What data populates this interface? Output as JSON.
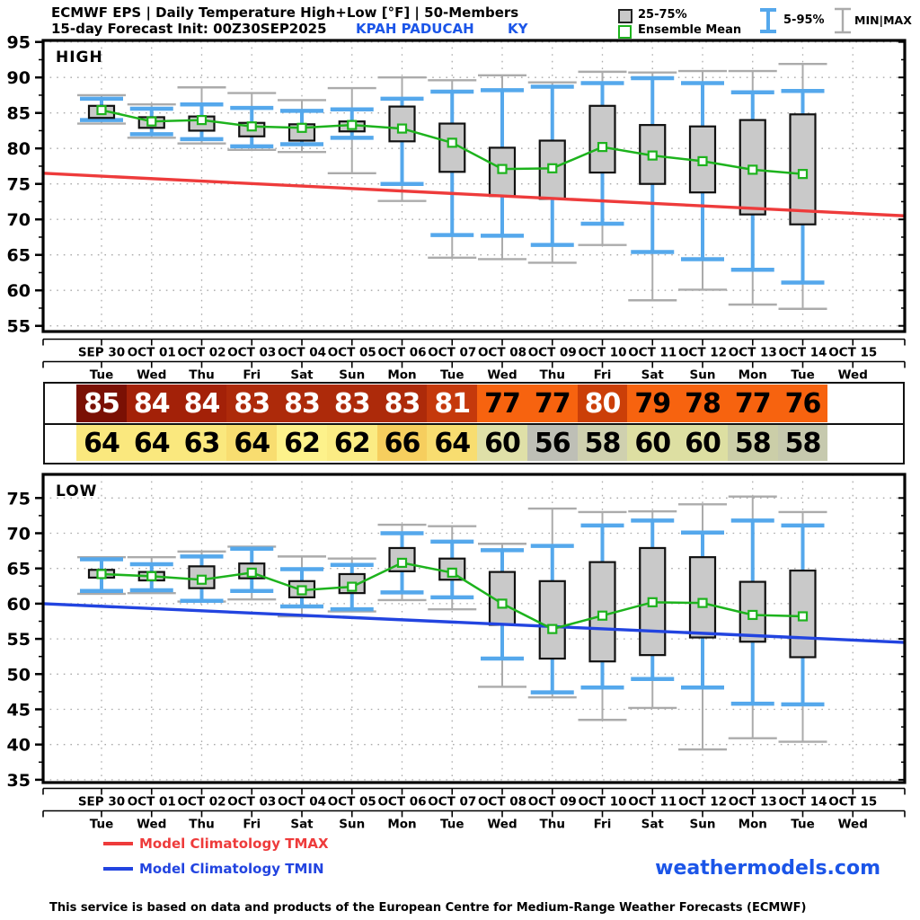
{
  "header": {
    "title_line1": "ECMWF EPS | Daily Temperature High+Low [°F] | 50-Members",
    "title_line2": "15-day Forecast Init: 00Z30SEP2025",
    "station": "KPAH  PADUCAH",
    "state": "KY",
    "legend": {
      "box_label": "25-75%",
      "mean_label": "Ensemble Mean",
      "pct_label": "5-95%",
      "minmax_label": "MIN|MAX"
    }
  },
  "days": [
    {
      "date": "SEP 30",
      "dow": "Tue"
    },
    {
      "date": "OCT 01",
      "dow": "Wed"
    },
    {
      "date": "OCT 02",
      "dow": "Thu"
    },
    {
      "date": "OCT 03",
      "dow": "Fri"
    },
    {
      "date": "OCT 04",
      "dow": "Sat"
    },
    {
      "date": "OCT 05",
      "dow": "Sun"
    },
    {
      "date": "OCT 06",
      "dow": "Mon"
    },
    {
      "date": "OCT 07",
      "dow": "Tue"
    },
    {
      "date": "OCT 08",
      "dow": "Wed"
    },
    {
      "date": "OCT 09",
      "dow": "Thu"
    },
    {
      "date": "OCT 10",
      "dow": "Fri"
    },
    {
      "date": "OCT 11",
      "dow": "Sat"
    },
    {
      "date": "OCT 12",
      "dow": "Sun"
    },
    {
      "date": "OCT 13",
      "dow": "Mon"
    },
    {
      "date": "OCT 14",
      "dow": "Tue"
    },
    {
      "date": "OCT 15",
      "dow": "Wed"
    }
  ],
  "table": {
    "high_values": [
      85,
      84,
      84,
      83,
      83,
      83,
      83,
      81,
      77,
      77,
      80,
      79,
      78,
      77,
      76
    ],
    "high_colors": [
      "#7A1004",
      "#A32108",
      "#A32108",
      "#AD2A0A",
      "#AD2A0A",
      "#AD2A0A",
      "#AD2A0A",
      "#C5390C",
      "#F7630F",
      "#F7630F",
      "#CB3F08",
      "#F7630F",
      "#F7630F",
      "#F7630F",
      "#F7630F"
    ],
    "high_text_colors": [
      "#FFFFFF",
      "#FFFFFF",
      "#FFFFFF",
      "#FFFFFF",
      "#FFFFFF",
      "#FFFFFF",
      "#FFFFFF",
      "#FFFFFF",
      "#000000",
      "#000000",
      "#FFFFFF",
      "#000000",
      "#000000",
      "#000000",
      "#000000"
    ],
    "low_values": [
      64,
      64,
      63,
      64,
      62,
      62,
      66,
      64,
      60,
      56,
      58,
      60,
      60,
      58,
      58
    ],
    "low_colors": [
      "#FAE87E",
      "#FAE87E",
      "#FAE87E",
      "#F8DD70",
      "#FDF28B",
      "#FBEC84",
      "#F6CE5E",
      "#F8DD70",
      "#DFE0A8",
      "#BEBFB6",
      "#CFD0AF",
      "#DDDFA2",
      "#DDDFA2",
      "#CBCEA8",
      "#C6C9AE"
    ],
    "low_text_colors": [
      "#000000",
      "#000000",
      "#000000",
      "#000000",
      "#000000",
      "#000000",
      "#000000",
      "#000000",
      "#000000",
      "#000000",
      "#000000",
      "#000000",
      "#000000",
      "#000000",
      "#000000"
    ]
  },
  "chart_data": [
    {
      "type": "boxplot",
      "title": "HIGH",
      "unit": "°F",
      "ylim": [
        55,
        95
      ],
      "y_ticks": [
        55,
        60,
        65,
        70,
        75,
        80,
        85,
        90,
        95
      ],
      "grid": true,
      "categories": [
        "SEP 30",
        "OCT 01",
        "OCT 02",
        "OCT 03",
        "OCT 04",
        "OCT 05",
        "OCT 06",
        "OCT 07",
        "OCT 08",
        "OCT 09",
        "OCT 10",
        "OCT 11",
        "OCT 12",
        "OCT 13",
        "OCT 14",
        "OCT 15"
      ],
      "values": [
        {
          "min": 83.5,
          "p5": 84.0,
          "p25": 84.3,
          "mean": 85.4,
          "p75": 86.0,
          "p95": 87.0,
          "max": 87.5
        },
        {
          "min": 81.5,
          "p5": 82.0,
          "p25": 82.9,
          "mean": 83.8,
          "p75": 84.4,
          "p95": 85.6,
          "max": 86.2
        },
        {
          "min": 80.7,
          "p5": 81.3,
          "p25": 82.5,
          "mean": 84.0,
          "p75": 84.5,
          "p95": 86.2,
          "max": 88.6
        },
        {
          "min": 79.8,
          "p5": 80.3,
          "p25": 81.7,
          "mean": 83.1,
          "p75": 83.6,
          "p95": 85.7,
          "max": 87.8
        },
        {
          "min": 79.5,
          "p5": 80.6,
          "p25": 81.1,
          "mean": 82.9,
          "p75": 83.4,
          "p95": 85.3,
          "max": 86.8
        },
        {
          "min": 76.5,
          "p5": 81.5,
          "p25": 82.4,
          "mean": 83.3,
          "p75": 83.8,
          "p95": 85.5,
          "max": 88.5
        },
        {
          "min": 72.6,
          "p5": 75.0,
          "p25": 81.0,
          "mean": 82.8,
          "p75": 85.9,
          "p95": 87.0,
          "max": 90.0
        },
        {
          "min": 64.6,
          "p5": 67.8,
          "p25": 76.7,
          "mean": 80.8,
          "p75": 83.5,
          "p95": 88.0,
          "max": 89.6
        },
        {
          "min": 64.4,
          "p5": 67.7,
          "p25": 73.3,
          "mean": 77.1,
          "p75": 80.1,
          "p95": 88.2,
          "max": 90.3
        },
        {
          "min": 63.9,
          "p5": 66.4,
          "p25": 72.9,
          "mean": 77.2,
          "p75": 81.1,
          "p95": 88.7,
          "max": 89.3
        },
        {
          "min": 66.4,
          "p5": 69.4,
          "p25": 76.6,
          "mean": 80.2,
          "p75": 86.0,
          "p95": 89.2,
          "max": 90.8
        },
        {
          "min": 58.6,
          "p5": 65.4,
          "p25": 75.0,
          "mean": 79.0,
          "p75": 83.3,
          "p95": 89.9,
          "max": 90.7
        },
        {
          "min": 60.1,
          "p5": 64.4,
          "p25": 73.8,
          "mean": 78.2,
          "p75": 83.1,
          "p95": 89.2,
          "max": 90.9
        },
        {
          "min": 58.0,
          "p5": 62.9,
          "p25": 70.7,
          "mean": 77.0,
          "p75": 84.0,
          "p95": 87.9,
          "max": 90.9
        },
        {
          "min": 57.4,
          "p5": 61.1,
          "p25": 69.3,
          "mean": 76.4,
          "p75": 84.8,
          "p95": 88.1,
          "max": 91.9
        }
      ],
      "climatology": {
        "label": "Model Climatology TMAX",
        "start": 76.5,
        "end": 70.5,
        "color": "#EE3B3B"
      }
    },
    {
      "type": "boxplot",
      "title": "LOW",
      "unit": "°F",
      "ylim": [
        35,
        75
      ],
      "y_ticks": [
        35,
        40,
        45,
        50,
        55,
        60,
        65,
        70,
        75
      ],
      "grid": true,
      "categories": [
        "SEP 30",
        "OCT 01",
        "OCT 02",
        "OCT 03",
        "OCT 04",
        "OCT 05",
        "OCT 06",
        "OCT 07",
        "OCT 08",
        "OCT 09",
        "OCT 10",
        "OCT 11",
        "OCT 12",
        "OCT 13",
        "OCT 14",
        "OCT 15"
      ],
      "values": [
        {
          "min": 61.4,
          "p5": 61.8,
          "p25": 63.7,
          "mean": 64.2,
          "p75": 64.8,
          "p95": 66.3,
          "max": 66.6
        },
        {
          "min": 61.5,
          "p5": 61.9,
          "p25": 63.3,
          "mean": 63.9,
          "p75": 64.5,
          "p95": 65.6,
          "max": 66.6
        },
        {
          "min": 60.3,
          "p5": 60.4,
          "p25": 62.2,
          "mean": 63.4,
          "p75": 65.3,
          "p95": 66.7,
          "max": 67.4
        },
        {
          "min": 60.6,
          "p5": 61.8,
          "p25": 63.6,
          "mean": 64.4,
          "p75": 65.7,
          "p95": 67.8,
          "max": 68.1
        },
        {
          "min": 58.2,
          "p5": 59.6,
          "p25": 60.9,
          "mean": 61.9,
          "p75": 63.2,
          "p95": 64.9,
          "max": 66.7
        },
        {
          "min": 58.9,
          "p5": 59.2,
          "p25": 61.5,
          "mean": 62.4,
          "p75": 64.2,
          "p95": 65.5,
          "max": 66.4
        },
        {
          "min": 60.5,
          "p5": 61.6,
          "p25": 64.6,
          "mean": 65.8,
          "p75": 67.9,
          "p95": 70.0,
          "max": 71.2
        },
        {
          "min": 59.2,
          "p5": 60.9,
          "p25": 63.4,
          "mean": 64.4,
          "p75": 66.4,
          "p95": 68.8,
          "max": 71.0
        },
        {
          "min": 48.2,
          "p5": 52.2,
          "p25": 57.0,
          "mean": 60.0,
          "p75": 64.5,
          "p95": 67.6,
          "max": 68.5
        },
        {
          "min": 46.7,
          "p5": 47.4,
          "p25": 52.2,
          "mean": 56.4,
          "p75": 63.2,
          "p95": 68.2,
          "max": 73.5
        },
        {
          "min": 43.5,
          "p5": 48.1,
          "p25": 51.8,
          "mean": 58.3,
          "p75": 65.9,
          "p95": 71.1,
          "max": 73.0
        },
        {
          "min": 45.2,
          "p5": 49.3,
          "p25": 52.7,
          "mean": 60.2,
          "p75": 67.9,
          "p95": 71.8,
          "max": 73.1
        },
        {
          "min": 39.3,
          "p5": 48.1,
          "p25": 55.2,
          "mean": 60.1,
          "p75": 66.6,
          "p95": 70.1,
          "max": 74.1
        },
        {
          "min": 40.9,
          "p5": 45.8,
          "p25": 54.6,
          "mean": 58.4,
          "p75": 63.1,
          "p95": 71.8,
          "max": 75.2
        },
        {
          "min": 40.4,
          "p5": 45.7,
          "p25": 52.4,
          "mean": 58.2,
          "p75": 64.7,
          "p95": 71.1,
          "max": 73.0
        }
      ],
      "climatology": {
        "label": "Model Climatology TMIN",
        "start": 60.0,
        "end": 54.5,
        "color": "#2244E0"
      }
    }
  ],
  "legend_bottom": {
    "tmax_label": "Model Climatology TMAX",
    "tmin_label": "Model Climatology TMIN",
    "tmax_color": "#EE3B3B",
    "tmin_color": "#2244E0"
  },
  "branding": "weathermodels.com",
  "footer": "This service is based on data and products of the European Centre for Medium-Range Weather Forecasts (ECMWF)",
  "colors": {
    "box_fill": "#C9C9C9",
    "box_border": "#111111",
    "whisker_blue": "#55A8EC",
    "whisker_gray": "#ABABAB",
    "mean_green": "#1DB31D",
    "grid": "#AAAAAA",
    "station_blue": "#1B55E8"
  }
}
